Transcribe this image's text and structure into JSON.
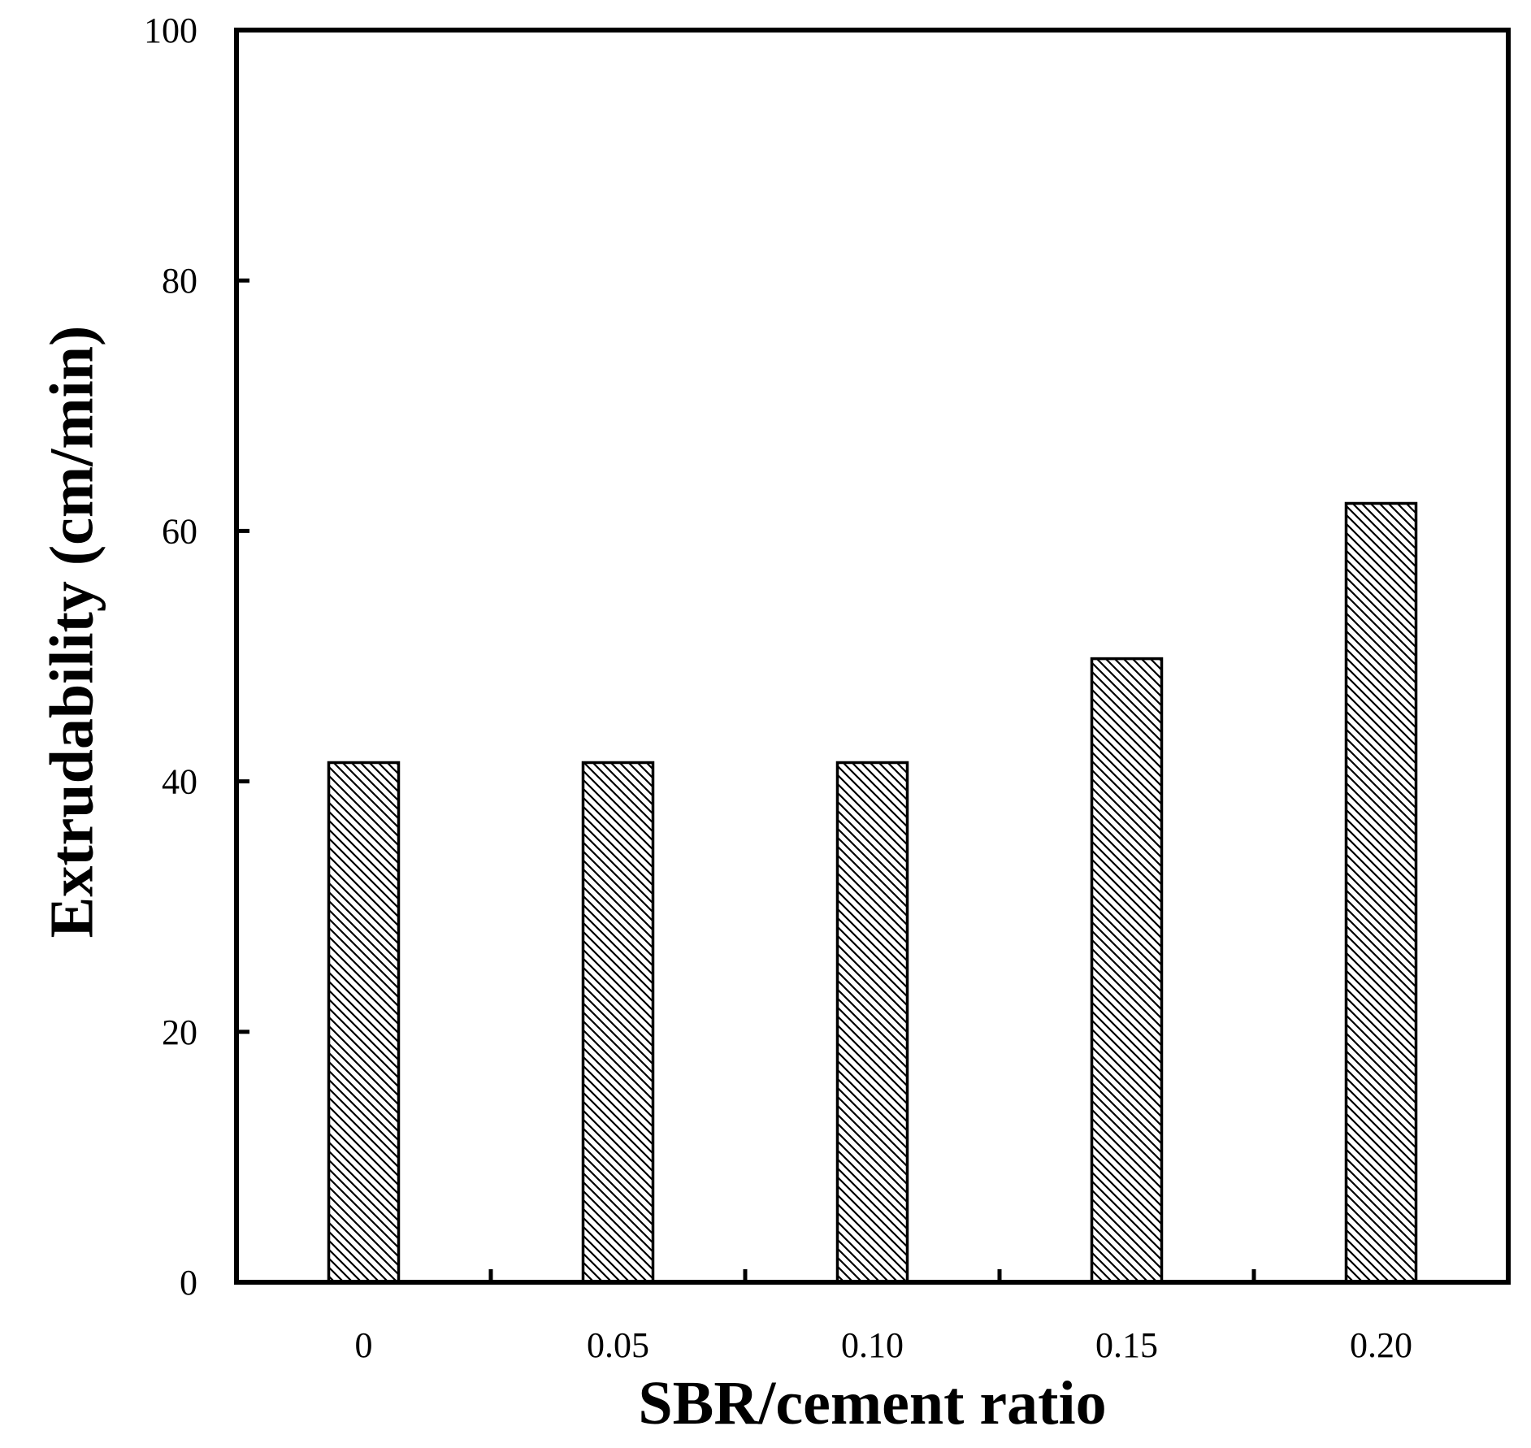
{
  "chart_data": {
    "type": "bar",
    "categories": [
      "0",
      "0.05",
      "0.10",
      "0.15",
      "0.20"
    ],
    "values": [
      41.5,
      41.5,
      41.5,
      49.8,
      62.2
    ],
    "title": "",
    "xlabel": "SBR/cement ratio",
    "ylabel": "Extrudability (cm/min)",
    "ylim": [
      0,
      100
    ],
    "yticks": [
      "0",
      "20",
      "40",
      "60",
      "80",
      "100"
    ],
    "grid": false,
    "legend": "none",
    "bar_fill": "diagonal-hatch",
    "colors": {
      "axis": "#000000",
      "bar_edge": "#000000",
      "hatch": "#000000",
      "background": "#ffffff"
    }
  }
}
